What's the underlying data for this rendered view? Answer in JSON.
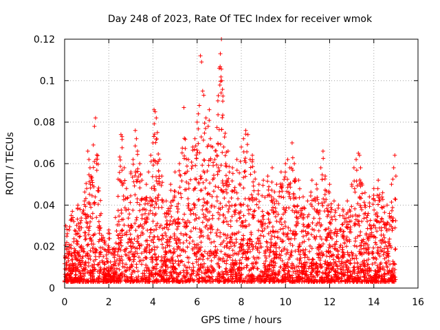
{
  "chart_data": {
    "type": "scatter",
    "title": "Day 248 of 2023, Rate Of TEC Index for receiver wmok",
    "xlabel": "GPS time / hours",
    "ylabel": "ROTI / TECUs",
    "xlim": [
      0,
      16
    ],
    "ylim": [
      0,
      0.12
    ],
    "xticks": [
      0,
      2,
      4,
      6,
      8,
      10,
      12,
      14,
      16
    ],
    "xtick_labels": [
      "0",
      "2",
      "4",
      "6",
      "8",
      "10",
      "12",
      "14",
      "16"
    ],
    "yticks": [
      0,
      0.02,
      0.04,
      0.06,
      0.08,
      0.1,
      0.12
    ],
    "ytick_labels": [
      "0",
      "0.02",
      "0.04",
      "0.06",
      "0.08",
      "0.1",
      "0.12"
    ],
    "grid": true,
    "legend": "none",
    "marker": "plus",
    "series": [
      {
        "name": "ROTI",
        "color": "#ff0000",
        "points": [
          [
            0.05,
            0.03
          ],
          [
            0.1,
            0.025
          ],
          [
            0.2,
            0.028
          ],
          [
            0.3,
            0.035
          ],
          [
            0.35,
            0.037
          ],
          [
            0.5,
            0.026
          ],
          [
            0.6,
            0.04
          ],
          [
            0.7,
            0.038
          ],
          [
            0.9,
            0.042
          ],
          [
            1.0,
            0.048
          ],
          [
            1.05,
            0.066
          ],
          [
            1.1,
            0.062
          ],
          [
            1.15,
            0.058
          ],
          [
            1.2,
            0.054
          ],
          [
            1.3,
            0.069
          ],
          [
            1.35,
            0.078
          ],
          [
            1.4,
            0.082
          ],
          [
            1.45,
            0.06
          ],
          [
            1.5,
            0.047
          ],
          [
            1.6,
            0.035
          ],
          [
            1.8,
            0.022
          ],
          [
            2.0,
            0.028
          ],
          [
            2.3,
            0.034
          ],
          [
            2.5,
            0.052
          ],
          [
            2.55,
            0.074
          ],
          [
            2.6,
            0.073
          ],
          [
            2.7,
            0.058
          ],
          [
            2.8,
            0.048
          ],
          [
            3.0,
            0.056
          ],
          [
            3.1,
            0.062
          ],
          [
            3.2,
            0.076
          ],
          [
            3.25,
            0.072
          ],
          [
            3.3,
            0.066
          ],
          [
            3.4,
            0.06
          ],
          [
            3.5,
            0.052
          ],
          [
            3.6,
            0.043
          ],
          [
            3.7,
            0.05
          ],
          [
            3.8,
            0.056
          ],
          [
            3.9,
            0.064
          ],
          [
            4.0,
            0.07
          ],
          [
            4.05,
            0.086
          ],
          [
            4.1,
            0.085
          ],
          [
            4.15,
            0.082
          ],
          [
            4.2,
            0.075
          ],
          [
            4.3,
            0.062
          ],
          [
            4.4,
            0.054
          ],
          [
            4.6,
            0.042
          ],
          [
            4.8,
            0.05
          ],
          [
            5.0,
            0.056
          ],
          [
            5.2,
            0.06
          ],
          [
            5.4,
            0.087
          ],
          [
            5.6,
            0.062
          ],
          [
            5.8,
            0.068
          ],
          [
            5.9,
            0.072
          ],
          [
            6.0,
            0.08
          ],
          [
            6.05,
            0.084
          ],
          [
            6.1,
            0.088
          ],
          [
            6.15,
            0.112
          ],
          [
            6.2,
            0.109
          ],
          [
            6.25,
            0.095
          ],
          [
            6.3,
            0.093
          ],
          [
            6.4,
            0.082
          ],
          [
            6.5,
            0.078
          ],
          [
            6.55,
            0.086
          ],
          [
            6.6,
            0.072
          ],
          [
            6.7,
            0.068
          ],
          [
            6.8,
            0.062
          ],
          [
            6.9,
            0.064
          ],
          [
            7.0,
            0.106
          ],
          [
            7.05,
            0.113
          ],
          [
            7.1,
            0.12
          ],
          [
            7.2,
            0.068
          ],
          [
            7.3,
            0.06
          ],
          [
            7.4,
            0.066
          ],
          [
            7.6,
            0.058
          ],
          [
            7.8,
            0.062
          ],
          [
            8.0,
            0.068
          ],
          [
            8.1,
            0.072
          ],
          [
            8.2,
            0.076
          ],
          [
            8.3,
            0.074
          ],
          [
            8.4,
            0.062
          ],
          [
            8.5,
            0.064
          ],
          [
            8.6,
            0.056
          ],
          [
            8.8,
            0.05
          ],
          [
            9.0,
            0.052
          ],
          [
            9.2,
            0.054
          ],
          [
            9.4,
            0.058
          ],
          [
            9.6,
            0.05
          ],
          [
            9.8,
            0.056
          ],
          [
            10.0,
            0.06
          ],
          [
            10.1,
            0.062
          ],
          [
            10.2,
            0.058
          ],
          [
            10.3,
            0.07
          ],
          [
            10.4,
            0.06
          ],
          [
            10.6,
            0.052
          ],
          [
            10.8,
            0.044
          ],
          [
            11.0,
            0.042
          ],
          [
            11.2,
            0.052
          ],
          [
            11.4,
            0.05
          ],
          [
            11.6,
            0.058
          ],
          [
            11.7,
            0.066
          ],
          [
            11.8,
            0.054
          ],
          [
            12.0,
            0.05
          ],
          [
            12.2,
            0.042
          ],
          [
            12.4,
            0.04
          ],
          [
            12.6,
            0.038
          ],
          [
            12.8,
            0.042
          ],
          [
            13.0,
            0.05
          ],
          [
            13.1,
            0.058
          ],
          [
            13.2,
            0.062
          ],
          [
            13.3,
            0.065
          ],
          [
            13.35,
            0.064
          ],
          [
            13.4,
            0.058
          ],
          [
            13.6,
            0.046
          ],
          [
            13.8,
            0.044
          ],
          [
            14.0,
            0.048
          ],
          [
            14.2,
            0.052
          ],
          [
            14.4,
            0.046
          ],
          [
            14.6,
            0.04
          ],
          [
            14.8,
            0.05
          ],
          [
            14.9,
            0.058
          ],
          [
            14.95,
            0.064
          ],
          [
            15.0,
            0.054
          ]
        ]
      }
    ]
  }
}
